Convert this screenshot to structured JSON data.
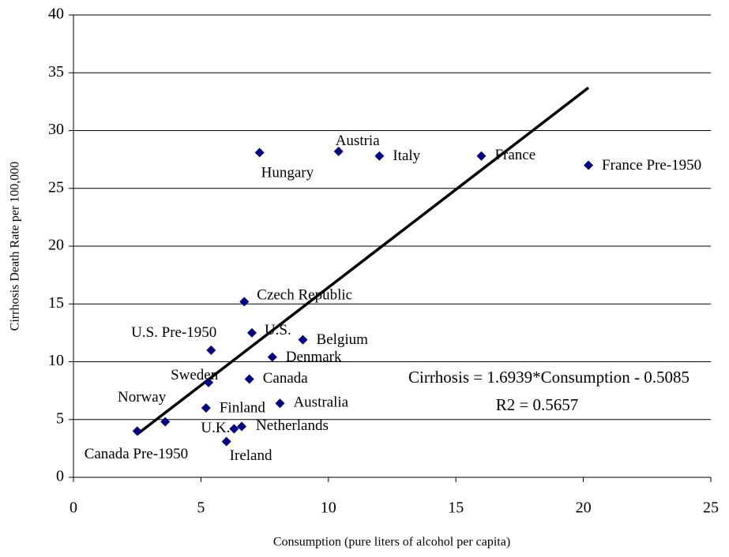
{
  "chart_data": {
    "type": "scatter",
    "x_label": "Consumption (pure liters of alcohol per capita)",
    "y_label": "Cirrhosis Death Rate per 100,000",
    "color": "#000080",
    "series": [
      {
        "name": "Countries",
        "labels": [
          "Hungary",
          "Austria",
          "Italy",
          "France",
          "France Pre-1950",
          "Czech Republic",
          "U.S.",
          "U.S. Pre-1950",
          "Belgium",
          "Denmark",
          "Sweden",
          "Canada",
          "Australia",
          "Finland",
          "Norway",
          "Canada Pre-1950",
          "U.K.",
          "Netherlands",
          "Ireland"
        ],
        "x": [
          7.3,
          10.4,
          12.0,
          16.0,
          20.2,
          6.7,
          7.0,
          5.4,
          9.0,
          7.8,
          5.3,
          6.9,
          8.1,
          5.2,
          3.6,
          2.5,
          6.3,
          6.6,
          6.0
        ],
        "values": [
          28.1,
          28.2,
          27.8,
          27.8,
          27.0,
          15.2,
          12.5,
          11.0,
          11.9,
          10.4,
          8.2,
          8.5,
          6.4,
          6.0,
          4.8,
          4.0,
          4.2,
          4.4,
          3.1
        ]
      }
    ],
    "trendline": {
      "slope": 1.6939,
      "intercept": -0.5085
    },
    "annotations": [
      "Cirrhosis = 1.6939*Consumption - 0.5085",
      "R2 = 0.5657"
    ],
    "xlim": [
      0,
      25
    ],
    "xticks": [
      0,
      5,
      10,
      15,
      20,
      25
    ],
    "ylim": [
      0,
      40
    ],
    "yticks": [
      0,
      5,
      10,
      15,
      20,
      25,
      30,
      35,
      40
    ],
    "grid": true
  }
}
